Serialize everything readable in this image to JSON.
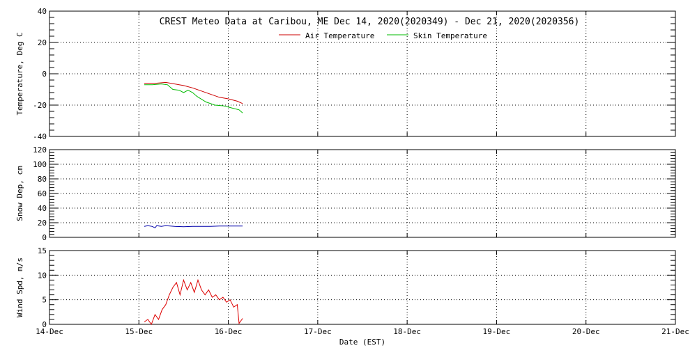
{
  "chart_data": {
    "title": "CREST Meteo Data at Caribou, ME   Dec 14, 2020(2020349) - Dec 21, 2020(2020356)",
    "xlabel": "Date (EST)",
    "x_ticks": [
      "14-Dec",
      "15-Dec",
      "16-Dec",
      "17-Dec",
      "18-Dec",
      "19-Dec",
      "20-Dec",
      "21-Dec"
    ],
    "xlim": [
      0,
      7
    ],
    "grid": true,
    "panels": [
      {
        "type": "line",
        "ylabel": "Temperature, Deg C",
        "ylim": [
          -40,
          40
        ],
        "y_ticks": [
          "-40",
          "-20",
          "0",
          "20",
          "40"
        ],
        "legend": "top-center",
        "series": [
          {
            "name": "Air Temperature",
            "color": "#cc0000",
            "x": [
              1.06,
              1.2,
              1.3,
              1.4,
              1.5,
              1.6,
              1.7,
              1.8,
              1.9,
              2.0,
              2.1,
              2.16
            ],
            "y": [
              -6,
              -6,
              -5.5,
              -6.5,
              -7.5,
              -9,
              -11,
              -13,
              -15,
              -16,
              -17.5,
              -19
            ]
          },
          {
            "name": "Skin Temperature",
            "color": "#00bb00",
            "x": [
              1.06,
              1.15,
              1.25,
              1.32,
              1.38,
              1.45,
              1.5,
              1.55,
              1.6,
              1.65,
              1.75,
              1.85,
              1.95,
              2.05,
              2.12,
              2.16
            ],
            "y": [
              -7,
              -7,
              -6.5,
              -7,
              -10,
              -10.5,
              -12,
              -10.5,
              -12,
              -14.5,
              -18,
              -20,
              -20.5,
              -22,
              -23,
              -25
            ]
          }
        ]
      },
      {
        "type": "line",
        "ylabel": "Snow Dep, cm",
        "ylim": [
          0,
          120
        ],
        "y_ticks": [
          "0",
          "20",
          "40",
          "60",
          "80",
          "100",
          "120"
        ],
        "series": [
          {
            "color": "#0000aa",
            "x": [
              1.06,
              1.1,
              1.15,
              1.18,
              1.2,
              1.25,
              1.3,
              1.4,
              1.5,
              1.6,
              1.7,
              1.8,
              1.9,
              2.0,
              2.1,
              2.16
            ],
            "y": [
              15,
              16,
              15,
              13,
              16,
              15,
              16,
              15,
              14.5,
              15,
              15,
              15,
              15.5,
              15.5,
              15.5,
              15.5
            ]
          }
        ]
      },
      {
        "type": "line",
        "ylabel": "Wind Spd, m/s",
        "ylim": [
          0,
          15
        ],
        "y_ticks": [
          "0",
          "5",
          "10",
          "15"
        ],
        "series": [
          {
            "color": "#dd0000",
            "x": [
              1.06,
              1.1,
              1.14,
              1.18,
              1.22,
              1.26,
              1.3,
              1.34,
              1.38,
              1.42,
              1.46,
              1.5,
              1.54,
              1.58,
              1.62,
              1.66,
              1.7,
              1.74,
              1.78,
              1.82,
              1.86,
              1.9,
              1.94,
              1.98,
              2.02,
              2.06,
              2.1,
              2.12,
              2.16
            ],
            "y": [
              0.5,
              1,
              0,
              2,
              1,
              3,
              4,
              6,
              7.5,
              8.5,
              6,
              9,
              7,
              8.5,
              6.5,
              9,
              7,
              6,
              7,
              5.5,
              6,
              5,
              5.5,
              4.5,
              5,
              3.5,
              4,
              0.2,
              1.2
            ]
          }
        ]
      }
    ]
  }
}
